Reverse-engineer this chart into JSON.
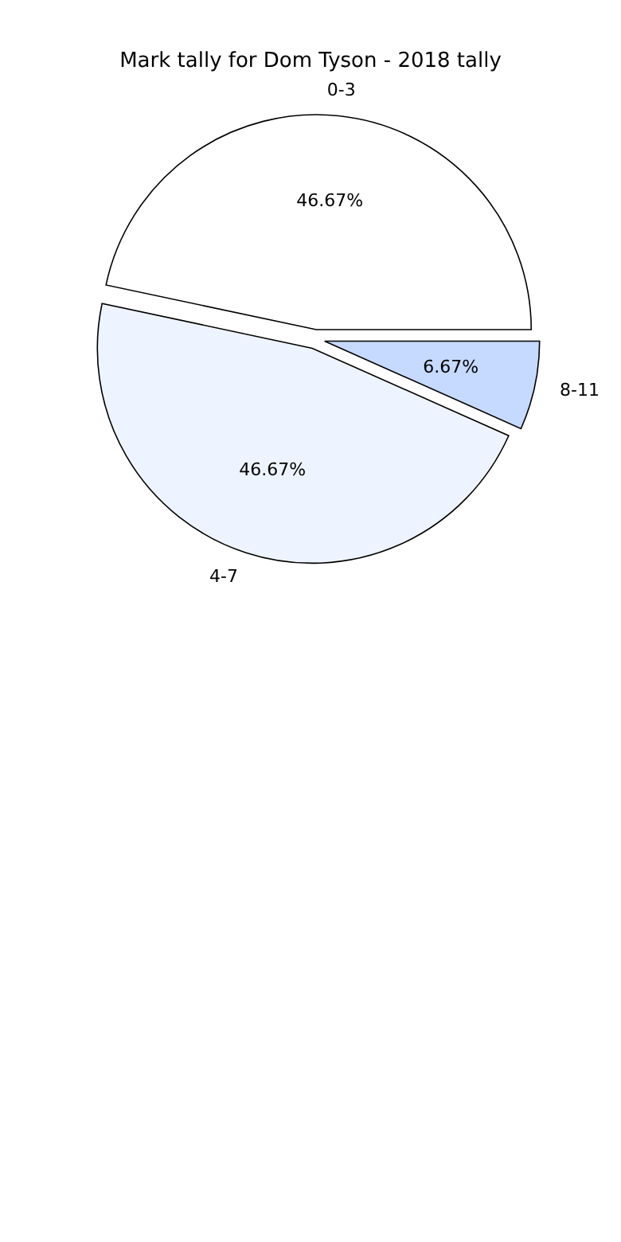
{
  "chart_data": {
    "type": "pie",
    "title": "Mark tally for Dom Tyson - 2018 tally",
    "categories": [
      "0-3",
      "4-7",
      "8-11"
    ],
    "values": [
      46.67,
      46.67,
      6.67
    ],
    "colors": [
      "#ffffff",
      "#eef4ff",
      "#c6d9ff"
    ],
    "value_labels": [
      "46.67%",
      "46.67%",
      "6.67%"
    ]
  }
}
